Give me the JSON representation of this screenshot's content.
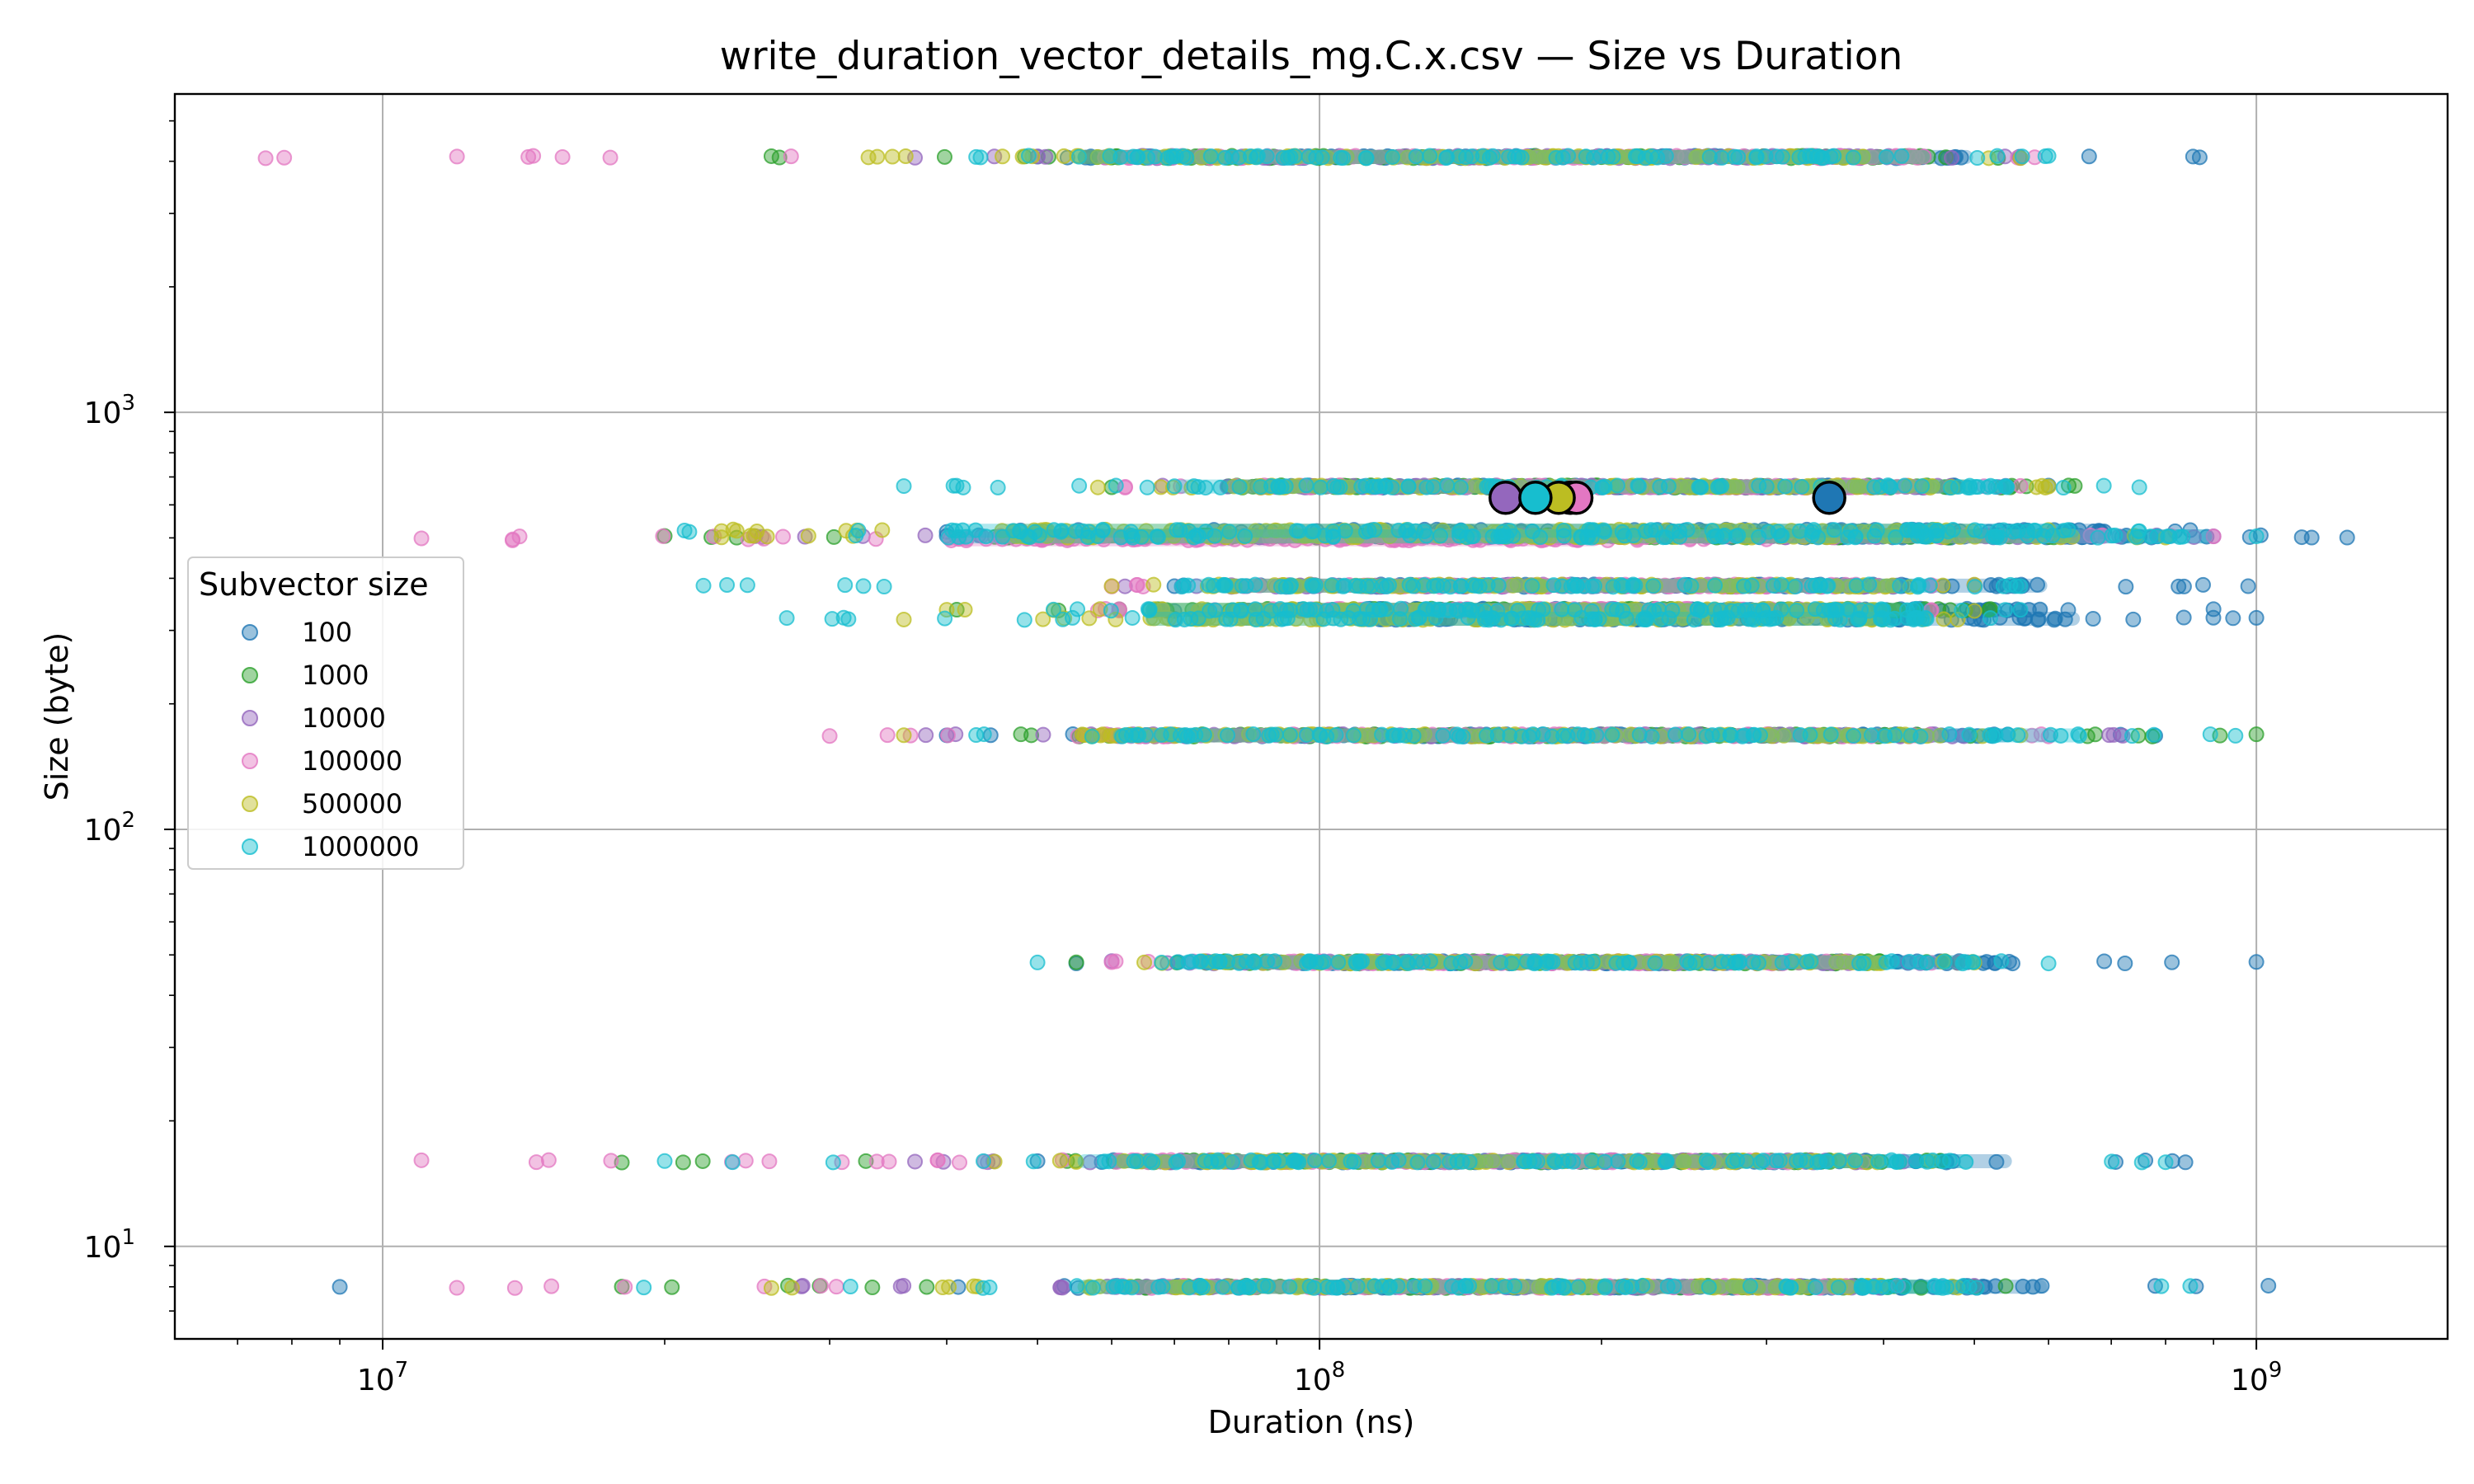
{
  "chart_data": {
    "type": "scatter",
    "title": "write_duration_vector_details_mg.C.x.csv — Size vs Duration",
    "xlabel": "Duration (ns)",
    "ylabel": "Size (byte)",
    "xscale": "log",
    "yscale": "log",
    "xlim": [
      6000000,
      1600000000
    ],
    "ylim": [
      6,
      5800
    ],
    "grid": true,
    "legend_title": "Subvector size",
    "legend_position": "center-left",
    "xticks": [
      {
        "value": 10000000,
        "base": "10",
        "exp": "7"
      },
      {
        "value": 100000000,
        "base": "10",
        "exp": "8"
      },
      {
        "value": 1000000000,
        "base": "10",
        "exp": "9"
      }
    ],
    "yticks": [
      {
        "value": 10,
        "base": "10",
        "exp": "1"
      },
      {
        "value": 100,
        "base": "10",
        "exp": "2"
      },
      {
        "value": 1000,
        "base": "10",
        "exp": "3"
      }
    ],
    "size_levels": [
      8,
      16,
      48,
      168,
      320,
      336,
      384,
      496,
      504,
      512,
      520,
      664,
      4096
    ],
    "series": [
      {
        "name": "100",
        "color": "#1f77b4",
        "median": {
          "x": 350000000,
          "y": 624
        },
        "ranges": [
          {
            "y": 8,
            "xmin": 9000000,
            "xmax": 1030000000,
            "dense": [
              100000000,
              600000000
            ]
          },
          {
            "y": 16,
            "xmin": 50000000,
            "xmax": 840000000,
            "dense": [
              95000000,
              550000000
            ]
          },
          {
            "y": 48,
            "xmin": 55000000,
            "xmax": 1000000000,
            "dense": [
              95000000,
              550000000
            ]
          },
          {
            "y": 168,
            "xmin": 40000000,
            "xmax": 780000000,
            "dense": [
              95000000,
              550000000
            ]
          },
          {
            "y": 320,
            "xmin": 70000000,
            "xmax": 1000000000,
            "dense": [
              110000000,
              650000000
            ]
          },
          {
            "y": 336,
            "xmin": 70000000,
            "xmax": 900000000,
            "dense": [
              110000000,
              600000000
            ]
          },
          {
            "y": 384,
            "xmin": 70000000,
            "xmax": 980000000,
            "dense": [
              110000000,
              600000000
            ]
          },
          {
            "y": 504,
            "xmin": 40000000,
            "xmax": 1250000000,
            "dense": [
              70000000,
              900000000
            ]
          },
          {
            "y": 520,
            "xmin": 40000000,
            "xmax": 850000000,
            "dense": [
              70000000,
              700000000
            ]
          },
          {
            "y": 664,
            "xmin": 80000000,
            "xmax": 600000000,
            "dense": [
              110000000,
              500000000
            ]
          },
          {
            "y": 4096,
            "xmin": 50000000,
            "xmax": 870000000,
            "dense": [
              90000000,
              500000000
            ]
          }
        ]
      },
      {
        "name": "1000",
        "color": "#2ca02c",
        "median": {
          "x": 185000000,
          "y": 624
        },
        "ranges": [
          {
            "y": 8,
            "xmin": 18000000,
            "xmax": 540000000,
            "dense": [
              60000000,
              450000000
            ]
          },
          {
            "y": 16,
            "xmin": 18000000,
            "xmax": 460000000,
            "dense": [
              60000000,
              400000000
            ]
          },
          {
            "y": 48,
            "xmin": 55000000,
            "xmax": 480000000,
            "dense": [
              75000000,
              400000000
            ]
          },
          {
            "y": 168,
            "xmin": 48000000,
            "xmax": 1000000000,
            "dense": [
              65000000,
              450000000
            ]
          },
          {
            "y": 336,
            "xmin": 41000000,
            "xmax": 520000000,
            "dense": [
              65000000,
              450000000
            ]
          },
          {
            "y": 504,
            "xmin": 20000000,
            "xmax": 620000000,
            "dense": [
              45000000,
              500000000
            ]
          },
          {
            "y": 664,
            "xmin": 60000000,
            "xmax": 640000000,
            "dense": [
              80000000,
              450000000
            ]
          },
          {
            "y": 4096,
            "xmin": 26000000,
            "xmax": 530000000,
            "dense": [
              55000000,
              450000000
            ]
          }
        ]
      },
      {
        "name": "10000",
        "color": "#9467bd",
        "median": {
          "x": 158000000,
          "y": 624
        },
        "ranges": [
          {
            "y": 8,
            "xmin": 28000000,
            "xmax": 500000000,
            "dense": [
              60000000,
              400000000
            ]
          },
          {
            "y": 16,
            "xmin": 37000000,
            "xmax": 420000000,
            "dense": [
              60000000,
              350000000
            ]
          },
          {
            "y": 48,
            "xmin": 60000000,
            "xmax": 480000000,
            "dense": [
              75000000,
              380000000
            ]
          },
          {
            "y": 168,
            "xmin": 38000000,
            "xmax": 720000000,
            "dense": [
              60000000,
              500000000
            ]
          },
          {
            "y": 384,
            "xmin": 62000000,
            "xmax": 500000000,
            "dense": [
              80000000,
              400000000
            ]
          },
          {
            "y": 504,
            "xmin": 25000000,
            "xmax": 900000000,
            "dense": [
              45000000,
              700000000
            ]
          },
          {
            "y": 664,
            "xmin": 68000000,
            "xmax": 540000000,
            "dense": [
              85000000,
              450000000
            ]
          },
          {
            "y": 4096,
            "xmin": 37000000,
            "xmax": 560000000,
            "dense": [
              55000000,
              450000000
            ]
          }
        ]
      },
      {
        "name": "100000",
        "color": "#e377c2",
        "median": {
          "x": 188000000,
          "y": 624
        },
        "ranges": [
          {
            "y": 8,
            "xmin": 12000000,
            "xmax": 460000000,
            "dense": [
              60000000,
              380000000
            ]
          },
          {
            "y": 16,
            "xmin": 11000000,
            "xmax": 380000000,
            "dense": [
              60000000,
              320000000
            ]
          },
          {
            "y": 48,
            "xmin": 60000000,
            "xmax": 450000000,
            "dense": [
              80000000,
              380000000
            ]
          },
          {
            "y": 168,
            "xmin": 30000000,
            "xmax": 600000000,
            "dense": [
              55000000,
              450000000
            ]
          },
          {
            "y": 336,
            "xmin": 58000000,
            "xmax": 450000000,
            "dense": [
              80000000,
              380000000
            ]
          },
          {
            "y": 384,
            "xmin": 60000000,
            "xmax": 450000000,
            "dense": [
              80000000,
              380000000
            ]
          },
          {
            "y": 496,
            "xmin": 11000000,
            "xmax": 300000000,
            "dense": [
              40000000,
              200000000
            ]
          },
          {
            "y": 504,
            "xmin": 14000000,
            "xmax": 900000000,
            "dense": [
              45000000,
              700000000
            ]
          },
          {
            "y": 664,
            "xmin": 62000000,
            "xmax": 560000000,
            "dense": [
              80000000,
              450000000
            ]
          },
          {
            "y": 4096,
            "xmin": 7500000,
            "xmax": 580000000,
            "dense": [
              60000000,
              450000000
            ]
          }
        ]
      },
      {
        "name": "500000",
        "color": "#bcbd22",
        "median": {
          "x": 180000000,
          "y": 624
        },
        "ranges": [
          {
            "y": 8,
            "xmin": 26000000,
            "xmax": 480000000,
            "dense": [
              55000000,
              400000000
            ]
          },
          {
            "y": 16,
            "xmin": 45000000,
            "xmax": 450000000,
            "dense": [
              60000000,
              380000000
            ]
          },
          {
            "y": 48,
            "xmin": 65000000,
            "xmax": 500000000,
            "dense": [
              75000000,
              400000000
            ]
          },
          {
            "y": 168,
            "xmin": 36000000,
            "xmax": 560000000,
            "dense": [
              55000000,
              450000000
            ]
          },
          {
            "y": 320,
            "xmin": 36000000,
            "xmax": 480000000,
            "dense": [
              65000000,
              400000000
            ]
          },
          {
            "y": 336,
            "xmin": 40000000,
            "xmax": 500000000,
            "dense": [
              65000000,
              420000000
            ]
          },
          {
            "y": 384,
            "xmin": 60000000,
            "xmax": 500000000,
            "dense": [
              75000000,
              420000000
            ]
          },
          {
            "y": 504,
            "xmin": 23000000,
            "xmax": 800000000,
            "dense": [
              45000000,
              650000000
            ]
          },
          {
            "y": 520,
            "xmin": 23000000,
            "xmax": 600000000,
            "dense": [
              45000000,
              500000000
            ]
          },
          {
            "y": 664,
            "xmin": 58000000,
            "xmax": 600000000,
            "dense": [
              80000000,
              500000000
            ]
          },
          {
            "y": 4096,
            "xmin": 33000000,
            "xmax": 560000000,
            "dense": [
              55000000,
              450000000
            ]
          }
        ]
      },
      {
        "name": "1000000",
        "color": "#17becf",
        "median": {
          "x": 170000000,
          "y": 624
        },
        "ranges": [
          {
            "y": 8,
            "xmin": 19000000,
            "xmax": 850000000,
            "dense": [
              55000000,
              500000000
            ]
          },
          {
            "y": 16,
            "xmin": 20000000,
            "xmax": 800000000,
            "dense": [
              55000000,
              500000000
            ]
          },
          {
            "y": 48,
            "xmin": 50000000,
            "xmax": 600000000,
            "dense": [
              70000000,
              500000000
            ]
          },
          {
            "y": 168,
            "xmin": 43000000,
            "xmax": 950000000,
            "dense": [
              60000000,
              650000000
            ]
          },
          {
            "y": 320,
            "xmin": 27000000,
            "xmax": 520000000,
            "dense": [
              65000000,
              450000000
            ]
          },
          {
            "y": 336,
            "xmin": 52000000,
            "xmax": 560000000,
            "dense": [
              65000000,
              450000000
            ]
          },
          {
            "y": 384,
            "xmin": 22000000,
            "xmax": 560000000,
            "dense": [
              70000000,
              450000000
            ]
          },
          {
            "y": 504,
            "xmin": 32000000,
            "xmax": 1000000000,
            "dense": [
              40000000,
              900000000
            ]
          },
          {
            "y": 520,
            "xmin": 21000000,
            "xmax": 750000000,
            "dense": [
              40000000,
              650000000
            ]
          },
          {
            "y": 664,
            "xmin": 36000000,
            "xmax": 750000000,
            "dense": [
              70000000,
              550000000
            ]
          },
          {
            "y": 4096,
            "xmin": 43000000,
            "xmax": 600000000,
            "dense": [
              55000000,
              450000000
            ]
          }
        ]
      }
    ]
  }
}
